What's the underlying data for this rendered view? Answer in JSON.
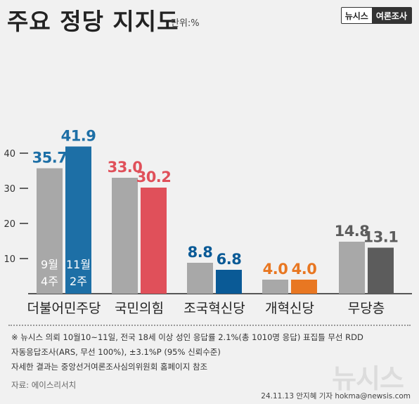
{
  "header": {
    "title": "주요 정당 지지도",
    "unit": "단위:%",
    "brand_left": "뉴시스",
    "brand_right": "여론조사"
  },
  "chart_data": {
    "type": "bar",
    "categories": [
      "더불어민주당",
      "국민의힘",
      "조국혁신당",
      "개혁신당",
      "무당층"
    ],
    "series": [
      {
        "name": "9월 4주",
        "values": [
          35.7,
          33.0,
          8.8,
          4.0,
          14.8
        ]
      },
      {
        "name": "11월 2주",
        "values": [
          41.9,
          30.2,
          6.8,
          4.0,
          13.1
        ]
      }
    ],
    "value_labels": [
      [
        "35.7",
        "41.9"
      ],
      [
        "33.0",
        "30.2"
      ],
      [
        "8.8",
        "6.8"
      ],
      [
        "4.0",
        "4.0"
      ],
      [
        "14.8",
        "13.1"
      ]
    ],
    "series_labels": [
      [
        "9월",
        "4주"
      ],
      [
        "11월",
        "2주"
      ]
    ],
    "yticks": [
      "10",
      "20",
      "30",
      "40"
    ],
    "ylim": [
      0,
      45
    ],
    "colors": {
      "grey": "#a8a8a8",
      "darkgrey": "#5c5c5c",
      "blue": "#1d6fa6",
      "red": "#e0505a",
      "navy": "#0a5a96",
      "orange": "#e87722"
    },
    "bar_colors": [
      [
        "#a8a8a8",
        "#1d6fa6"
      ],
      [
        "#a8a8a8",
        "#e0505a"
      ],
      [
        "#a8a8a8",
        "#0a5a96"
      ],
      [
        "#a8a8a8",
        "#e87722"
      ],
      [
        "#a8a8a8",
        "#5c5c5c"
      ]
    ],
    "label_colors": [
      [
        "#1d6fa6",
        "#1d6fa6"
      ],
      [
        "#e0505a",
        "#e0505a"
      ],
      [
        "#0a5a96",
        "#0a5a96"
      ],
      [
        "#e87722",
        "#e87722"
      ],
      [
        "#5c5c5c",
        "#5c5c5c"
      ]
    ],
    "grid": false,
    "legend": "inside-first-bars"
  },
  "footnotes": {
    "line1": "※ 뉴시스 의뢰 10월10~11일, 전국 18세 이상 성인 응답률 2.1%(총 1010명 응답) 표집틀 무선 RDD",
    "line2": "자동응답조사(ARS, 무선 100%), ±3.1%P (95% 신뢰수준)",
    "line3": "자세한 결과는 중앙선거여론조사심의위원회 홈페이지 참조",
    "source": "자료: 에이스리서치",
    "credit": "24.11.13 안지혜 기자 hokma@newsis.com",
    "watermark": "뉴시스"
  }
}
